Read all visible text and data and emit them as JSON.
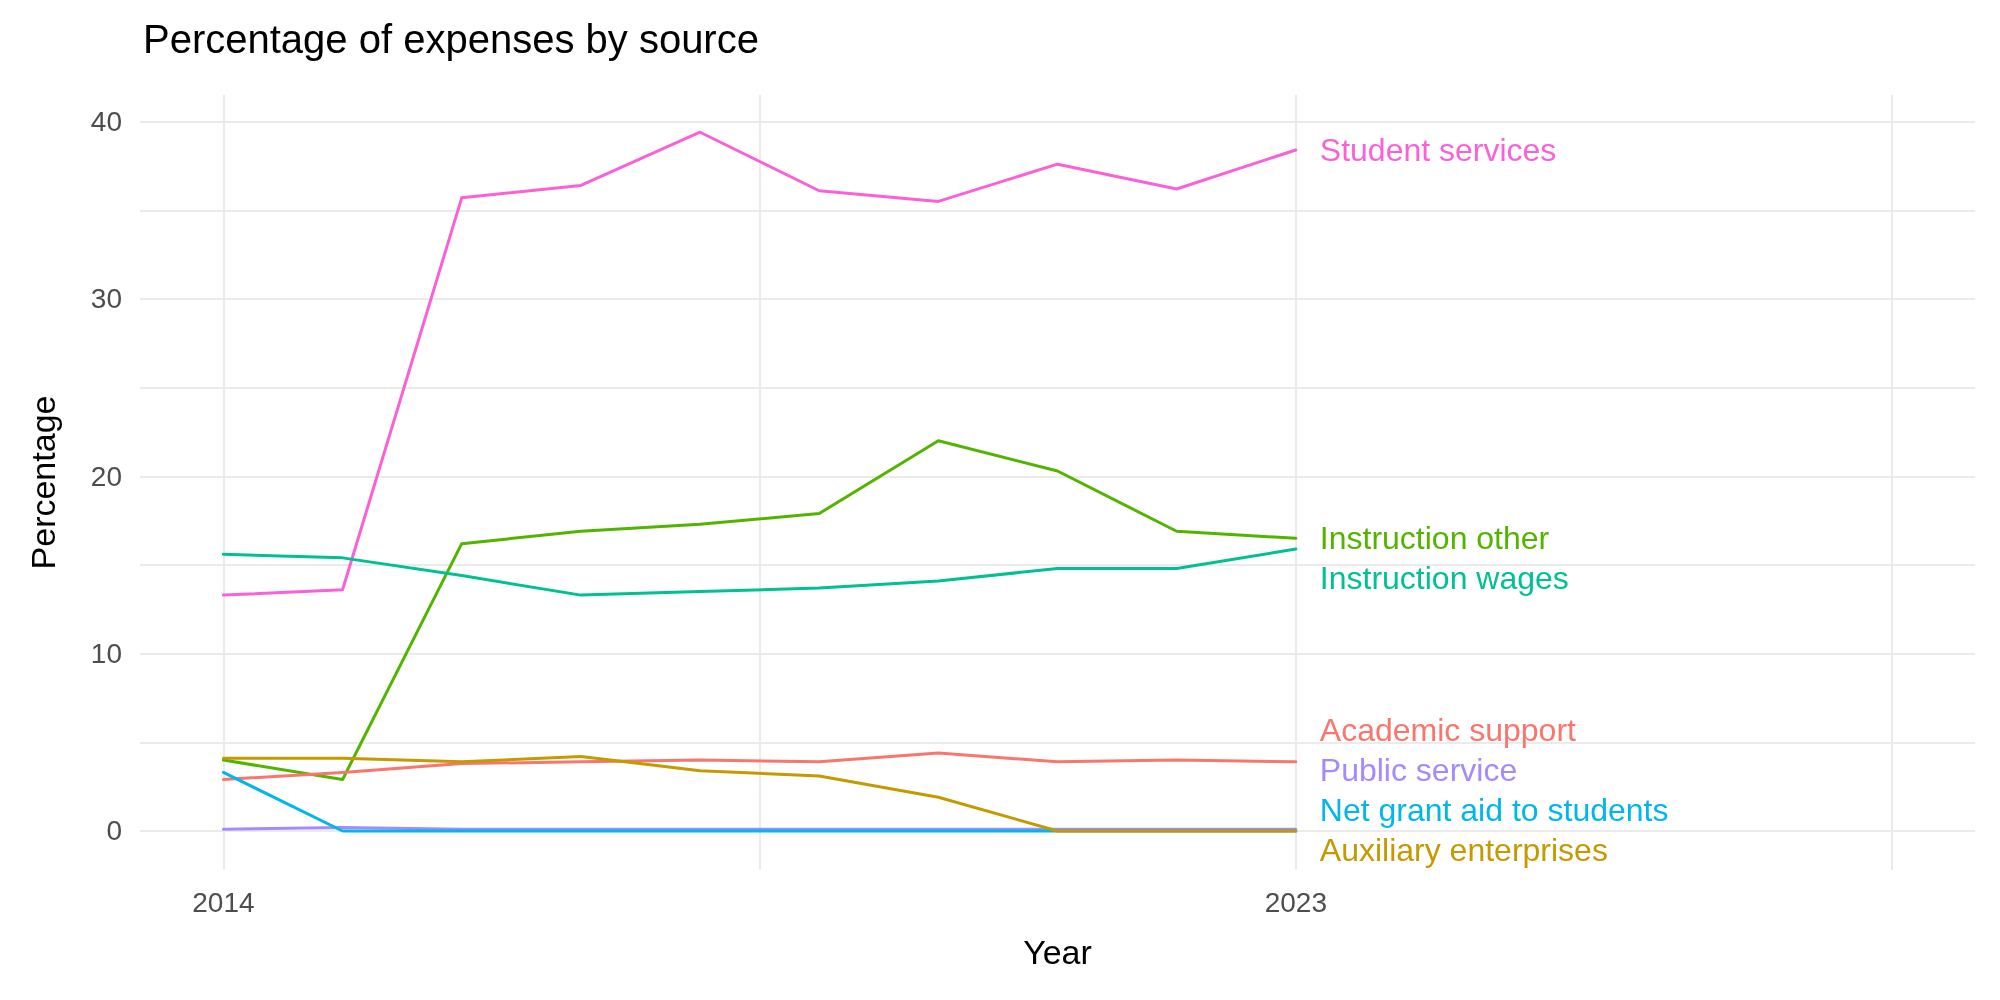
{
  "chart_data": {
    "type": "line",
    "title": "Percentage of expenses by source",
    "xlabel": "Year",
    "ylabel": "Percentage",
    "x": [
      2014,
      2015,
      2016,
      2017,
      2018,
      2019,
      2020,
      2021,
      2022,
      2023
    ],
    "series": [
      {
        "name": "Student services",
        "color": "#fb61d7",
        "values": [
          13.3,
          13.6,
          35.7,
          36.4,
          39.4,
          36.1,
          35.5,
          37.6,
          36.2,
          38.4
        ]
      },
      {
        "name": "Instruction other",
        "color": "#53b400",
        "values": [
          4.0,
          2.9,
          16.2,
          16.9,
          17.3,
          17.9,
          22.0,
          20.3,
          16.9,
          16.5
        ]
      },
      {
        "name": "Instruction wages",
        "color": "#00c094",
        "values": [
          15.6,
          15.4,
          14.4,
          13.3,
          13.5,
          13.7,
          14.1,
          14.8,
          14.8,
          15.9
        ]
      },
      {
        "name": "Academic support",
        "color": "#f8766d",
        "values": [
          2.9,
          3.3,
          3.8,
          3.9,
          4.0,
          3.9,
          4.4,
          3.9,
          4.0,
          3.9
        ]
      },
      {
        "name": "Public service",
        "color": "#a58aff",
        "values": [
          0.1,
          0.2,
          0.1,
          0.1,
          0.1,
          0.1,
          0.1,
          0.1,
          0.1,
          0.1
        ]
      },
      {
        "name": "Net grant aid to students",
        "color": "#00b6eb",
        "values": [
          3.3,
          0,
          0,
          0,
          0,
          0,
          0,
          0,
          0,
          0
        ]
      },
      {
        "name": "Auxiliary enterprises",
        "color": "#c49a00",
        "values": [
          4.1,
          4.1,
          3.9,
          4.2,
          3.4,
          3.1,
          1.9,
          0,
          0,
          0
        ]
      }
    ],
    "xlim": [
      2013.3,
      2028.7
    ],
    "xticks": [
      2014,
      {
        "value": 2018.5,
        "label": null
      },
      2023,
      {
        "value": 2028,
        "label": null
      }
    ],
    "ylim": [
      -2.2,
      41.5
    ],
    "yticks": [
      0,
      {
        "value": 5,
        "label": null
      },
      10,
      {
        "value": 15,
        "label": null
      },
      20,
      {
        "value": 25,
        "label": null
      },
      30,
      {
        "value": 35,
        "label": null
      },
      40
    ],
    "grid": true,
    "marker": "none",
    "line_style": "solid"
  }
}
